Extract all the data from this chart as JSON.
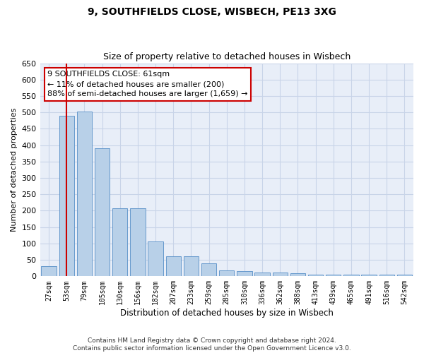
{
  "title1": "9, SOUTHFIELDS CLOSE, WISBECH, PE13 3XG",
  "title2": "Size of property relative to detached houses in Wisbech",
  "xlabel": "Distribution of detached houses by size in Wisbech",
  "ylabel": "Number of detached properties",
  "categories": [
    "27sqm",
    "53sqm",
    "79sqm",
    "105sqm",
    "130sqm",
    "156sqm",
    "182sqm",
    "207sqm",
    "233sqm",
    "259sqm",
    "285sqm",
    "310sqm",
    "336sqm",
    "362sqm",
    "388sqm",
    "413sqm",
    "439sqm",
    "465sqm",
    "491sqm",
    "516sqm",
    "542sqm"
  ],
  "values": [
    30,
    490,
    503,
    390,
    208,
    208,
    107,
    60,
    60,
    40,
    18,
    15,
    12,
    12,
    10,
    5,
    5,
    5,
    5,
    5,
    5
  ],
  "bar_color": "#b8d0e8",
  "bar_edge_color": "#6699cc",
  "redline_x": 1.0,
  "annotation_text": "9 SOUTHFIELDS CLOSE: 61sqm\n← 11% of detached houses are smaller (200)\n88% of semi-detached houses are larger (1,659) →",
  "annotation_box_color": "#ffffff",
  "annotation_box_edge": "#cc0000",
  "ylim": [
    0,
    650
  ],
  "yticks": [
    0,
    50,
    100,
    150,
    200,
    250,
    300,
    350,
    400,
    450,
    500,
    550,
    600,
    650
  ],
  "footer1": "Contains HM Land Registry data © Crown copyright and database right 2024.",
  "footer2": "Contains public sector information licensed under the Open Government Licence v3.0.",
  "grid_color": "#c8d4e8",
  "background_color": "#e8eef8"
}
